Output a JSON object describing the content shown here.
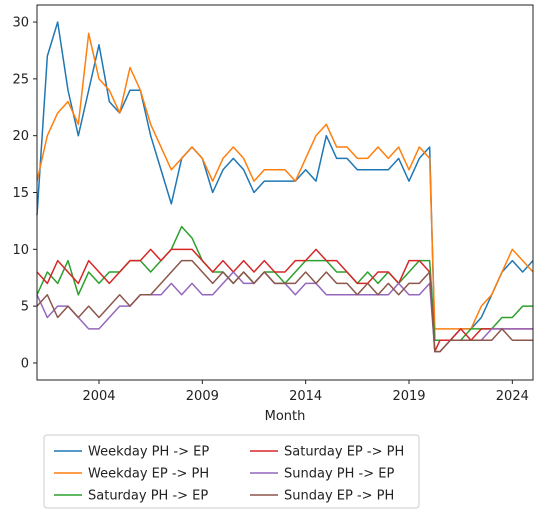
{
  "chart_data": {
    "type": "line",
    "title": "",
    "xlabel": "Month",
    "ylabel": "",
    "xlim": [
      2001.0,
      2025.0
    ],
    "ylim": [
      -1.5,
      31.5
    ],
    "x_ticks": [
      2004,
      2009,
      2014,
      2019,
      2024
    ],
    "x_tick_labels": [
      "2004",
      "2009",
      "2014",
      "2019",
      "2024"
    ],
    "y_ticks": [
      0,
      5,
      10,
      15,
      20,
      25,
      30
    ],
    "y_tick_labels": [
      "0",
      "5",
      "10",
      "15",
      "20",
      "25",
      "30"
    ],
    "grid": false,
    "legend": {
      "placement": "bottom-outside",
      "columns": 2
    },
    "series": [
      {
        "name": "Weekday PH -> EP",
        "color": "#1f77b4",
        "x": [
          2001.0,
          2001.5,
          2002.0,
          2002.5,
          2003.0,
          2003.5,
          2004.0,
          2004.5,
          2005.0,
          2005.5,
          2006.0,
          2006.5,
          2007.0,
          2007.5,
          2008.0,
          2008.5,
          2009.0,
          2009.5,
          2010.0,
          2010.5,
          2011.0,
          2011.5,
          2012.0,
          2012.5,
          2013.0,
          2013.5,
          2014.0,
          2014.5,
          2015.0,
          2015.5,
          2016.0,
          2016.5,
          2017.0,
          2017.5,
          2018.0,
          2018.5,
          2019.0,
          2019.5,
          2020.0,
          2020.25,
          2020.5,
          2021.0,
          2021.5,
          2022.0,
          2022.5,
          2023.0,
          2023.5,
          2024.0,
          2024.5,
          2025.0
        ],
        "y": [
          13,
          27,
          30,
          24,
          20,
          24,
          28,
          23,
          22,
          24,
          24,
          20,
          17,
          14,
          18,
          19,
          18,
          15,
          17,
          18,
          17,
          15,
          16,
          16,
          16,
          16,
          17,
          16,
          20,
          18,
          18,
          17,
          17,
          17,
          17,
          18,
          16,
          18,
          19,
          2,
          2,
          2,
          3,
          3,
          4,
          6,
          8,
          9,
          8,
          9
        ]
      },
      {
        "name": "Weekday EP -> PH",
        "color": "#ff7f0e",
        "x": [
          2001.0,
          2001.5,
          2002.0,
          2002.5,
          2003.0,
          2003.5,
          2004.0,
          2004.5,
          2005.0,
          2005.5,
          2006.0,
          2006.5,
          2007.0,
          2007.5,
          2008.0,
          2008.5,
          2009.0,
          2009.5,
          2010.0,
          2010.5,
          2011.0,
          2011.5,
          2012.0,
          2012.5,
          2013.0,
          2013.5,
          2014.0,
          2014.5,
          2015.0,
          2015.5,
          2016.0,
          2016.5,
          2017.0,
          2017.5,
          2018.0,
          2018.5,
          2019.0,
          2019.5,
          2020.0,
          2020.25,
          2020.5,
          2021.0,
          2021.5,
          2022.0,
          2022.5,
          2023.0,
          2023.5,
          2024.0,
          2024.5,
          2025.0
        ],
        "y": [
          16,
          20,
          22,
          23,
          21,
          29,
          25,
          24,
          22,
          26,
          24,
          21,
          19,
          17,
          18,
          19,
          18,
          16,
          18,
          19,
          18,
          16,
          17,
          17,
          17,
          16,
          18,
          20,
          21,
          19,
          19,
          18,
          18,
          19,
          18,
          19,
          17,
          19,
          18,
          3,
          3,
          3,
          3,
          3,
          5,
          6,
          8,
          10,
          9,
          8
        ]
      },
      {
        "name": "Saturday PH -> EP",
        "color": "#2ca02c",
        "x": [
          2001.0,
          2001.5,
          2002.0,
          2002.5,
          2003.0,
          2003.5,
          2004.0,
          2004.5,
          2005.0,
          2005.5,
          2006.0,
          2006.5,
          2007.0,
          2007.5,
          2008.0,
          2008.5,
          2009.0,
          2009.5,
          2010.0,
          2010.5,
          2011.0,
          2011.5,
          2012.0,
          2012.5,
          2013.0,
          2013.5,
          2014.0,
          2014.5,
          2015.0,
          2015.5,
          2016.0,
          2016.5,
          2017.0,
          2017.5,
          2018.0,
          2018.5,
          2019.0,
          2019.5,
          2020.0,
          2020.25,
          2020.5,
          2021.0,
          2021.5,
          2022.0,
          2022.5,
          2023.0,
          2023.5,
          2024.0,
          2024.5,
          2025.0
        ],
        "y": [
          6,
          8,
          7,
          9,
          6,
          8,
          7,
          8,
          8,
          9,
          9,
          8,
          9,
          10,
          12,
          11,
          9,
          8,
          8,
          7,
          8,
          7,
          8,
          8,
          7,
          8,
          9,
          9,
          9,
          8,
          8,
          7,
          8,
          7,
          8,
          7,
          8,
          9,
          9,
          2,
          2,
          2,
          2,
          3,
          3,
          3,
          4,
          4,
          5,
          5
        ]
      },
      {
        "name": "Saturday EP -> PH",
        "color": "#d62728",
        "x": [
          2001.0,
          2001.5,
          2002.0,
          2002.5,
          2003.0,
          2003.5,
          2004.0,
          2004.5,
          2005.0,
          2005.5,
          2006.0,
          2006.5,
          2007.0,
          2007.5,
          2008.0,
          2008.5,
          2009.0,
          2009.5,
          2010.0,
          2010.5,
          2011.0,
          2011.5,
          2012.0,
          2012.5,
          2013.0,
          2013.5,
          2014.0,
          2014.5,
          2015.0,
          2015.5,
          2016.0,
          2016.5,
          2017.0,
          2017.5,
          2018.0,
          2018.5,
          2019.0,
          2019.5,
          2020.0,
          2020.25,
          2020.5,
          2021.0,
          2021.5,
          2022.0,
          2022.5,
          2023.0,
          2023.5,
          2024.0,
          2024.5,
          2025.0
        ],
        "y": [
          8,
          7,
          9,
          8,
          7,
          9,
          8,
          7,
          8,
          9,
          9,
          10,
          9,
          10,
          10,
          10,
          9,
          8,
          9,
          8,
          9,
          8,
          9,
          8,
          8,
          9,
          9,
          10,
          9,
          9,
          8,
          7,
          7,
          8,
          8,
          7,
          9,
          9,
          8,
          1,
          2,
          2,
          3,
          2,
          3,
          3,
          3,
          3,
          3,
          3
        ]
      },
      {
        "name": "Sunday PH -> EP",
        "color": "#9467bd",
        "x": [
          2001.0,
          2001.5,
          2002.0,
          2002.5,
          2003.0,
          2003.5,
          2004.0,
          2004.5,
          2005.0,
          2005.5,
          2006.0,
          2006.5,
          2007.0,
          2007.5,
          2008.0,
          2008.5,
          2009.0,
          2009.5,
          2010.0,
          2010.5,
          2011.0,
          2011.5,
          2012.0,
          2012.5,
          2013.0,
          2013.5,
          2014.0,
          2014.5,
          2015.0,
          2015.5,
          2016.0,
          2016.5,
          2017.0,
          2017.5,
          2018.0,
          2018.5,
          2019.0,
          2019.5,
          2020.0,
          2020.25,
          2020.5,
          2021.0,
          2021.5,
          2022.0,
          2022.5,
          2023.0,
          2023.5,
          2024.0,
          2024.5,
          2025.0
        ],
        "y": [
          6,
          4,
          5,
          5,
          4,
          3,
          3,
          4,
          5,
          5,
          6,
          6,
          6,
          7,
          6,
          7,
          6,
          6,
          7,
          8,
          7,
          7,
          8,
          7,
          7,
          6,
          7,
          7,
          6,
          6,
          6,
          6,
          6,
          6,
          6,
          7,
          6,
          6,
          7,
          1,
          1,
          2,
          2,
          2,
          2,
          3,
          3,
          3,
          3,
          3
        ]
      },
      {
        "name": "Sunday EP -> PH",
        "color": "#8c564b",
        "x": [
          2001.0,
          2001.5,
          2002.0,
          2002.5,
          2003.0,
          2003.5,
          2004.0,
          2004.5,
          2005.0,
          2005.5,
          2006.0,
          2006.5,
          2007.0,
          2007.5,
          2008.0,
          2008.5,
          2009.0,
          2009.5,
          2010.0,
          2010.5,
          2011.0,
          2011.5,
          2012.0,
          2012.5,
          2013.0,
          2013.5,
          2014.0,
          2014.5,
          2015.0,
          2015.5,
          2016.0,
          2016.5,
          2017.0,
          2017.5,
          2018.0,
          2018.5,
          2019.0,
          2019.5,
          2020.0,
          2020.25,
          2020.5,
          2021.0,
          2021.5,
          2022.0,
          2022.5,
          2023.0,
          2023.5,
          2024.0,
          2024.5,
          2025.0
        ],
        "y": [
          5,
          6,
          4,
          5,
          4,
          5,
          4,
          5,
          6,
          5,
          6,
          6,
          7,
          8,
          9,
          9,
          8,
          7,
          8,
          7,
          8,
          7,
          8,
          7,
          7,
          7,
          8,
          7,
          8,
          7,
          7,
          6,
          7,
          6,
          7,
          6,
          7,
          7,
          8,
          1,
          1,
          2,
          2,
          2,
          2,
          2,
          3,
          2,
          2,
          2
        ]
      }
    ]
  }
}
